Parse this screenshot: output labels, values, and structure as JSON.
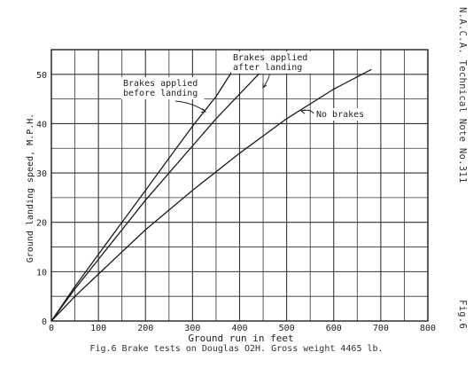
{
  "side_note": "N.A.C.A. Technical Note No.311",
  "figure_label": "Fig.6",
  "caption": "Fig.6  Brake tests on Douglas O2H. Gross weight 4465 lb.",
  "chart_data": {
    "type": "line",
    "xlabel": "Ground run in feet",
    "ylabel": "Ground landing speed, M.P.H.",
    "xlim": [
      0,
      800
    ],
    "ylim": [
      0,
      55
    ],
    "xticks": [
      0,
      100,
      200,
      300,
      400,
      500,
      600,
      700,
      800
    ],
    "yticks": [
      0,
      10,
      20,
      30,
      40,
      50
    ],
    "grid": true,
    "series": [
      {
        "name": "Brakes applied before landing",
        "x": [
          0,
          50,
          100,
          150,
          200,
          250,
          300,
          350,
          390
        ],
        "y": [
          0,
          7,
          13.5,
          20,
          26.5,
          33,
          39.5,
          45.5,
          51.5
        ]
      },
      {
        "name": "Brakes applied after landing",
        "x": [
          0,
          50,
          100,
          150,
          200,
          250,
          300,
          350,
          400,
          450
        ],
        "y": [
          0,
          6.5,
          12.5,
          18.5,
          24.5,
          30,
          35.5,
          41,
          46,
          51
        ]
      },
      {
        "name": "No brakes",
        "x": [
          0,
          50,
          100,
          200,
          300,
          400,
          500,
          600,
          680
        ],
        "y": [
          0,
          5,
          9.5,
          18.5,
          26.5,
          34,
          41,
          47,
          51
        ]
      }
    ],
    "annotations": [
      {
        "lines": [
          "Brakes applied",
          "before landing"
        ],
        "target_series": 0
      },
      {
        "lines": [
          "Brakes applied",
          "after landing"
        ],
        "target_series": 1
      },
      {
        "lines": [
          "No brakes"
        ],
        "target_series": 2
      }
    ]
  }
}
